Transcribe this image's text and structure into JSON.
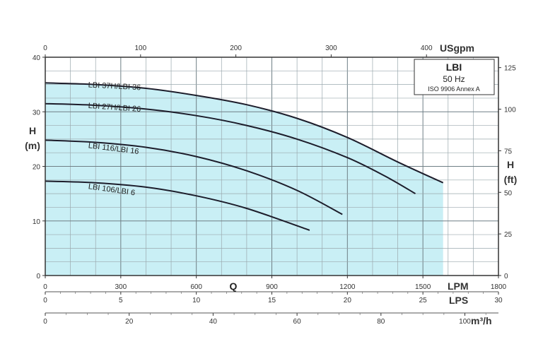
{
  "chart_data": {
    "type": "line",
    "x": {
      "unit": "LPM",
      "range": [
        0,
        1800
      ],
      "ticks": [
        0,
        300,
        600,
        900,
        1200,
        1500,
        1800
      ]
    },
    "y": {
      "unit_label_top": "H",
      "unit_label_bottom": "(m)",
      "range": [
        0,
        40
      ],
      "ticks": [
        0,
        10,
        20,
        30,
        40
      ]
    },
    "y_right": {
      "unit_label_top": "H",
      "unit_label_bottom": "(ft)",
      "factor": 3.28084,
      "ticks": [
        0,
        25,
        50,
        75,
        100,
        125
      ]
    },
    "x_top": {
      "unit": "USgpm",
      "factor": 0.264172,
      "ticks": [
        0,
        100,
        200,
        300,
        400
      ]
    },
    "x_lps": {
      "unit": "LPS",
      "factor": 60,
      "ticks": [
        0,
        5,
        10,
        15,
        20,
        25,
        30
      ]
    },
    "x_m3h": {
      "unit": "m³/h",
      "factor": 16.6667,
      "ticks": [
        0,
        20,
        40,
        60,
        80,
        100
      ]
    },
    "q_label": "Q",
    "grid": true,
    "fill_color": "#c9eff5",
    "line_color": "#1d1d2b",
    "series": [
      {
        "name": "LBI 37H/LBI 36",
        "x": [
          0,
          200,
          400,
          600,
          800,
          1000,
          1200,
          1400,
          1580
        ],
        "y": [
          35.3,
          35.0,
          34.3,
          33.0,
          31.3,
          28.8,
          25.3,
          20.8,
          17.0
        ]
      },
      {
        "name": "LBI 27H/LBI 26",
        "x": [
          0,
          200,
          400,
          600,
          800,
          1000,
          1200,
          1350,
          1470
        ],
        "y": [
          31.5,
          31.2,
          30.5,
          29.3,
          27.5,
          25.0,
          21.6,
          18.2,
          15.0
        ]
      },
      {
        "name": "LBI 116/LBI 16",
        "x": [
          0,
          200,
          400,
          600,
          800,
          1000,
          1180
        ],
        "y": [
          24.8,
          24.4,
          23.5,
          21.8,
          19.2,
          15.6,
          11.2
        ]
      },
      {
        "name": "LBI 106/LBI 6",
        "x": [
          0,
          200,
          400,
          600,
          800,
          1050
        ],
        "y": [
          17.3,
          17.0,
          16.2,
          14.6,
          12.3,
          8.3
        ]
      }
    ]
  },
  "legend": {
    "title": "LBI",
    "frequency": "50 Hz",
    "standard": "ISO 9906 Annex A"
  }
}
